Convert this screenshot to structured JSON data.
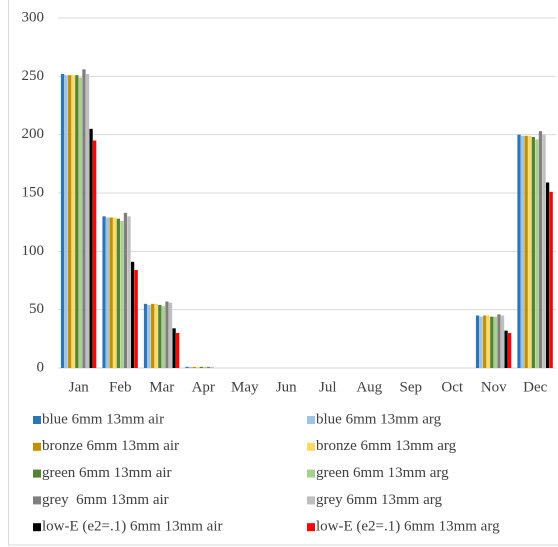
{
  "chart_data": {
    "type": "bar",
    "categories": [
      "Jan",
      "Feb",
      "Mar",
      "Apr",
      "May",
      "Jun",
      "Jul",
      "Aug",
      "Sep",
      "Oct",
      "Nov",
      "Dec"
    ],
    "series": [
      {
        "name": "blue 6mm 13mm air",
        "color": "#2e75b6",
        "values": [
          252,
          130,
          55,
          1,
          0,
          0,
          0,
          0,
          0,
          0,
          45,
          200
        ]
      },
      {
        "name": "blue 6mm 13mm arg",
        "color": "#9dc3e6",
        "values": [
          251,
          129,
          54,
          1,
          0,
          0,
          0,
          0,
          0,
          0,
          44,
          199
        ]
      },
      {
        "name": "bronze 6mm 13mm air",
        "color": "#bf9000",
        "values": [
          251,
          129,
          55,
          1,
          0,
          0,
          0,
          0,
          0,
          0,
          45,
          199
        ]
      },
      {
        "name": "bronze 6mm 13mm arg",
        "color": "#ffd966",
        "values": [
          251,
          129,
          55,
          1,
          0,
          0,
          0,
          0,
          0,
          0,
          45,
          199
        ]
      },
      {
        "name": "green 6mm 13mm air",
        "color": "#548235",
        "values": [
          251,
          128,
          54,
          1,
          0,
          0,
          0,
          0,
          0,
          0,
          44,
          198
        ]
      },
      {
        "name": "green 6mm 13mm arg",
        "color": "#a9d18e",
        "values": [
          249,
          126,
          53,
          1,
          0,
          0,
          0,
          0,
          0,
          0,
          44,
          196
        ]
      },
      {
        "name": "grey  6mm 13mm air",
        "color": "#7f7f7f",
        "values": [
          256,
          133,
          57,
          1,
          0,
          0,
          0,
          0,
          0,
          0,
          46,
          203
        ]
      },
      {
        "name": "grey 6mm 13mm arg",
        "color": "#bfbfbf",
        "values": [
          252,
          130,
          56,
          1,
          0,
          0,
          0,
          0,
          0,
          0,
          45,
          200
        ]
      },
      {
        "name": "low-E (e2=.1) 6mm 13mm air",
        "color": "#000000",
        "values": [
          205,
          91,
          34,
          0,
          0,
          0,
          0,
          0,
          0,
          0,
          32,
          159
        ]
      },
      {
        "name": "low-E (e2=.1) 6mm 13mm arg",
        "color": "#ff0000",
        "values": [
          195,
          84,
          30,
          0,
          0,
          0,
          0,
          0,
          0,
          0,
          30,
          151
        ]
      }
    ],
    "ylim": [
      0,
      300
    ],
    "yticks": [
      0,
      50,
      100,
      150,
      200,
      250,
      300
    ],
    "grid": true,
    "legend": "bottom"
  }
}
